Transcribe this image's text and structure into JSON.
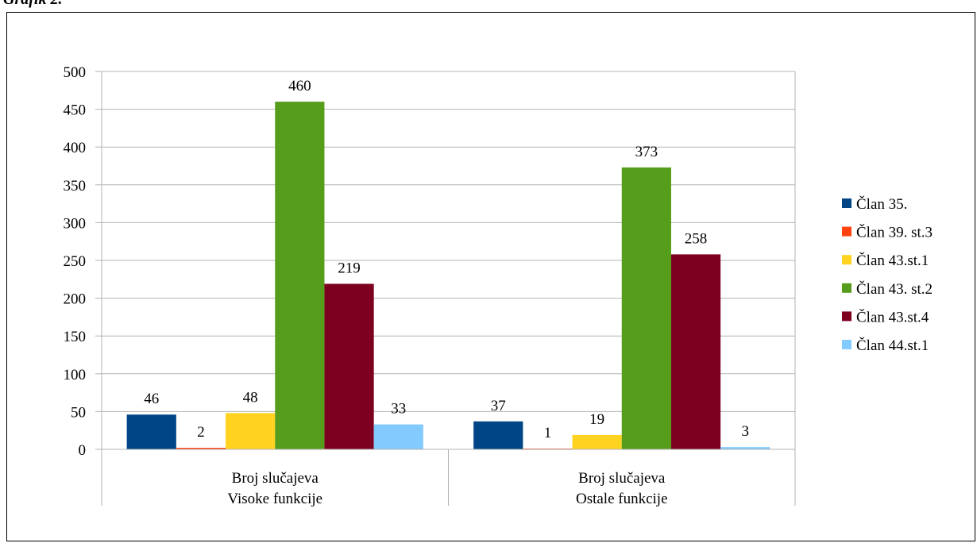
{
  "heading": "Grafik 2.",
  "chart_data": {
    "type": "bar",
    "categories": [
      "Broj slučajeva\nVisoke funkcije",
      "Broj slučajeva\nOstale funkcije"
    ],
    "series": [
      {
        "name": "Član 35.",
        "color": "#004586",
        "values": [
          46,
          37
        ]
      },
      {
        "name": "Član 39. st.3",
        "color": "#ff420e",
        "values": [
          2,
          1
        ]
      },
      {
        "name": "Član 43.st.1",
        "color": "#ffd320",
        "values": [
          48,
          19
        ]
      },
      {
        "name": "Član 43. st.2",
        "color": "#579d1c",
        "values": [
          460,
          373
        ]
      },
      {
        "name": "Član 43.st.4",
        "color": "#7e0021",
        "values": [
          219,
          258
        ]
      },
      {
        "name": "Član 44.st.1",
        "color": "#83caff",
        "values": [
          33,
          3
        ]
      }
    ],
    "ylim": [
      0,
      500
    ],
    "yticks": [
      0,
      50,
      100,
      150,
      200,
      250,
      300,
      350,
      400,
      450,
      500
    ],
    "grid": true,
    "legend": "right"
  }
}
